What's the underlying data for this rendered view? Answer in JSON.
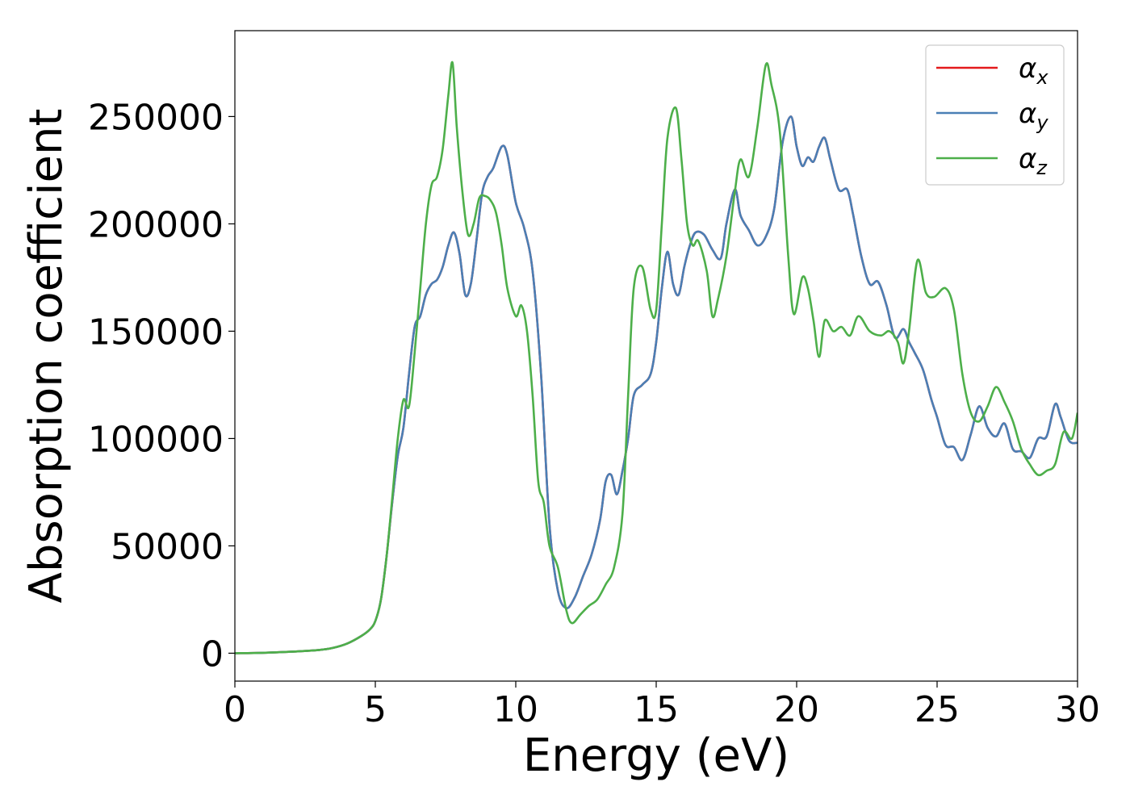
{
  "chart_data": {
    "type": "line",
    "xlabel": "Energy (eV)",
    "ylabel": "Absorption coefficient",
    "xlim": [
      0,
      30
    ],
    "ylim": [
      -13000,
      290000
    ],
    "xticks": [
      0,
      5,
      10,
      15,
      20,
      25,
      30
    ],
    "xtick_labels": [
      "0",
      "5",
      "10",
      "15",
      "20",
      "25",
      "30"
    ],
    "yticks": [
      0,
      50000,
      100000,
      150000,
      200000,
      250000
    ],
    "ytick_labels": [
      "0",
      "50000",
      "100000",
      "150000",
      "200000",
      "250000"
    ],
    "grid": false,
    "legend_position": "top-right",
    "series": [
      {
        "name": "α",
        "subscript": "x",
        "color": "#e41a1c",
        "x": [
          0,
          1,
          2,
          3,
          3.5,
          4,
          4.5,
          4.8,
          5,
          5.2,
          5.4,
          5.6,
          5.8,
          6,
          6.2,
          6.4,
          6.6,
          6.8,
          7,
          7.2,
          7.4,
          7.6,
          7.8,
          8,
          8.2,
          8.4,
          8.6,
          8.8,
          9,
          9.2,
          9.5,
          9.7,
          10,
          10.3,
          10.6,
          10.9,
          11.2,
          11.5,
          11.8,
          12.1,
          12.4,
          12.7,
          13,
          13.2,
          13.4,
          13.6,
          13.8,
          14,
          14.2,
          14.5,
          14.8,
          15,
          15.2,
          15.4,
          15.6,
          15.8,
          16,
          16.2,
          16.4,
          16.7,
          17,
          17.3,
          17.5,
          17.8,
          18,
          18.3,
          18.6,
          18.9,
          19.2,
          19.5,
          19.8,
          20,
          20.2,
          20.4,
          20.6,
          20.8,
          21,
          21.2,
          21.5,
          21.8,
          22,
          22.3,
          22.6,
          22.9,
          23.2,
          23.5,
          23.8,
          24,
          24.2,
          24.5,
          24.8,
          25,
          25.3,
          25.6,
          25.9,
          26.2,
          26.5,
          26.8,
          27.1,
          27.4,
          27.7,
          28,
          28.3,
          28.6,
          28.9,
          29.2,
          29.4,
          29.7,
          30
        ],
        "y": [
          0,
          200,
          700,
          1500,
          2500,
          4500,
          8000,
          11000,
          15000,
          25000,
          45000,
          70000,
          92000,
          105000,
          130000,
          152000,
          157000,
          167000,
          172000,
          174000,
          180000,
          190000,
          196000,
          186000,
          167000,
          172000,
          192000,
          214000,
          222000,
          226000,
          236000,
          232000,
          210000,
          198000,
          178000,
          130000,
          60000,
          29000,
          21000,
          26000,
          36000,
          46000,
          62000,
          80000,
          83000,
          74000,
          85000,
          100000,
          120000,
          125000,
          130000,
          145000,
          170000,
          187000,
          172000,
          167000,
          180000,
          190000,
          196000,
          195000,
          188000,
          184000,
          200000,
          216000,
          204000,
          197000,
          190000,
          194000,
          207000,
          238000,
          250000,
          236000,
          227000,
          231000,
          229000,
          236000,
          240000,
          230000,
          216000,
          216000,
          205000,
          185000,
          172000,
          173000,
          162000,
          147000,
          151000,
          145000,
          140000,
          132000,
          118000,
          110000,
          97000,
          96000,
          90000,
          102000,
          115000,
          105000,
          101000,
          107000,
          95000,
          94000,
          91000,
          100000,
          101000,
          116000,
          110000,
          99000,
          98000
        ]
      },
      {
        "name": "α",
        "subscript": "y",
        "color": "#4a7fb5",
        "x": [
          0,
          1,
          2,
          3,
          3.5,
          4,
          4.5,
          4.8,
          5,
          5.2,
          5.4,
          5.6,
          5.8,
          6,
          6.2,
          6.4,
          6.6,
          6.8,
          7,
          7.2,
          7.4,
          7.6,
          7.8,
          8,
          8.2,
          8.4,
          8.6,
          8.8,
          9,
          9.2,
          9.5,
          9.7,
          10,
          10.3,
          10.6,
          10.9,
          11.2,
          11.5,
          11.8,
          12.1,
          12.4,
          12.7,
          13,
          13.2,
          13.4,
          13.6,
          13.8,
          14,
          14.2,
          14.5,
          14.8,
          15,
          15.2,
          15.4,
          15.6,
          15.8,
          16,
          16.2,
          16.4,
          16.7,
          17,
          17.3,
          17.5,
          17.8,
          18,
          18.3,
          18.6,
          18.9,
          19.2,
          19.5,
          19.8,
          20,
          20.2,
          20.4,
          20.6,
          20.8,
          21,
          21.2,
          21.5,
          21.8,
          22,
          22.3,
          22.6,
          22.9,
          23.2,
          23.5,
          23.8,
          24,
          24.2,
          24.5,
          24.8,
          25,
          25.3,
          25.6,
          25.9,
          26.2,
          26.5,
          26.8,
          27.1,
          27.4,
          27.7,
          28,
          28.3,
          28.6,
          28.9,
          29.2,
          29.4,
          29.7,
          30
        ],
        "y": [
          0,
          200,
          700,
          1500,
          2500,
          4500,
          8000,
          11000,
          15000,
          25000,
          45000,
          70000,
          92000,
          105000,
          130000,
          152000,
          157000,
          167000,
          172000,
          174000,
          180000,
          190000,
          196000,
          186000,
          167000,
          172000,
          192000,
          214000,
          222000,
          226000,
          236000,
          232000,
          210000,
          198000,
          178000,
          130000,
          60000,
          29000,
          21000,
          26000,
          36000,
          46000,
          62000,
          80000,
          83000,
          74000,
          85000,
          100000,
          120000,
          125000,
          130000,
          145000,
          170000,
          187000,
          172000,
          167000,
          180000,
          190000,
          196000,
          195000,
          188000,
          184000,
          200000,
          216000,
          204000,
          197000,
          190000,
          194000,
          207000,
          238000,
          250000,
          236000,
          227000,
          231000,
          229000,
          236000,
          240000,
          230000,
          216000,
          216000,
          205000,
          185000,
          172000,
          173000,
          162000,
          147000,
          151000,
          145000,
          140000,
          132000,
          118000,
          110000,
          97000,
          96000,
          90000,
          102000,
          115000,
          105000,
          101000,
          107000,
          95000,
          94000,
          91000,
          100000,
          101000,
          116000,
          110000,
          99000,
          98000
        ]
      },
      {
        "name": "α",
        "subscript": "z",
        "color": "#4daf4a",
        "x": [
          0,
          1,
          2,
          3,
          3.5,
          4,
          4.5,
          4.8,
          5,
          5.2,
          5.4,
          5.6,
          5.8,
          6,
          6.2,
          6.4,
          6.6,
          6.8,
          7,
          7.2,
          7.4,
          7.6,
          7.75,
          7.9,
          8.1,
          8.3,
          8.5,
          8.7,
          8.9,
          9.1,
          9.3,
          9.5,
          9.7,
          10,
          10.2,
          10.4,
          10.6,
          10.8,
          11,
          11.2,
          11.5,
          11.8,
          12,
          12.3,
          12.6,
          12.9,
          13.2,
          13.5,
          13.8,
          14,
          14.2,
          14.5,
          14.8,
          15,
          15.2,
          15.4,
          15.7,
          15.9,
          16.1,
          16.3,
          16.5,
          16.8,
          17,
          17.2,
          17.5,
          17.8,
          18,
          18.3,
          18.6,
          18.9,
          19.1,
          19.4,
          19.7,
          19.9,
          20.2,
          20.4,
          20.6,
          20.8,
          21,
          21.3,
          21.6,
          21.9,
          22.2,
          22.6,
          23,
          23.3,
          23.6,
          23.8,
          24,
          24.3,
          24.6,
          24.9,
          25.3,
          25.6,
          25.9,
          26.2,
          26.5,
          26.8,
          27.1,
          27.4,
          27.7,
          28,
          28.3,
          28.6,
          28.9,
          29.2,
          29.5,
          29.8,
          30
        ],
        "y": [
          0,
          200,
          700,
          1500,
          2500,
          4500,
          8000,
          11000,
          15000,
          25000,
          45000,
          72000,
          100000,
          118000,
          115000,
          140000,
          170000,
          200000,
          218000,
          222000,
          235000,
          260000,
          275000,
          245000,
          215000,
          195000,
          200000,
          212000,
          213000,
          211000,
          205000,
          190000,
          170000,
          157000,
          162000,
          150000,
          120000,
          80000,
          70000,
          50000,
          40000,
          20000,
          14000,
          18000,
          22000,
          25000,
          32000,
          40000,
          65000,
          120000,
          170000,
          180000,
          160000,
          160000,
          200000,
          240000,
          254000,
          230000,
          200000,
          190000,
          192000,
          178000,
          157000,
          165000,
          185000,
          215000,
          230000,
          222000,
          245000,
          274000,
          265000,
          243000,
          185000,
          158000,
          175000,
          170000,
          155000,
          138000,
          155000,
          150000,
          152000,
          148000,
          157000,
          150000,
          148000,
          150000,
          145000,
          135000,
          150000,
          183000,
          168000,
          166000,
          170000,
          160000,
          130000,
          112000,
          108000,
          115000,
          124000,
          117000,
          108000,
          95000,
          88000,
          83000,
          85000,
          88000,
          103000,
          100000,
          112000
        ]
      }
    ]
  }
}
